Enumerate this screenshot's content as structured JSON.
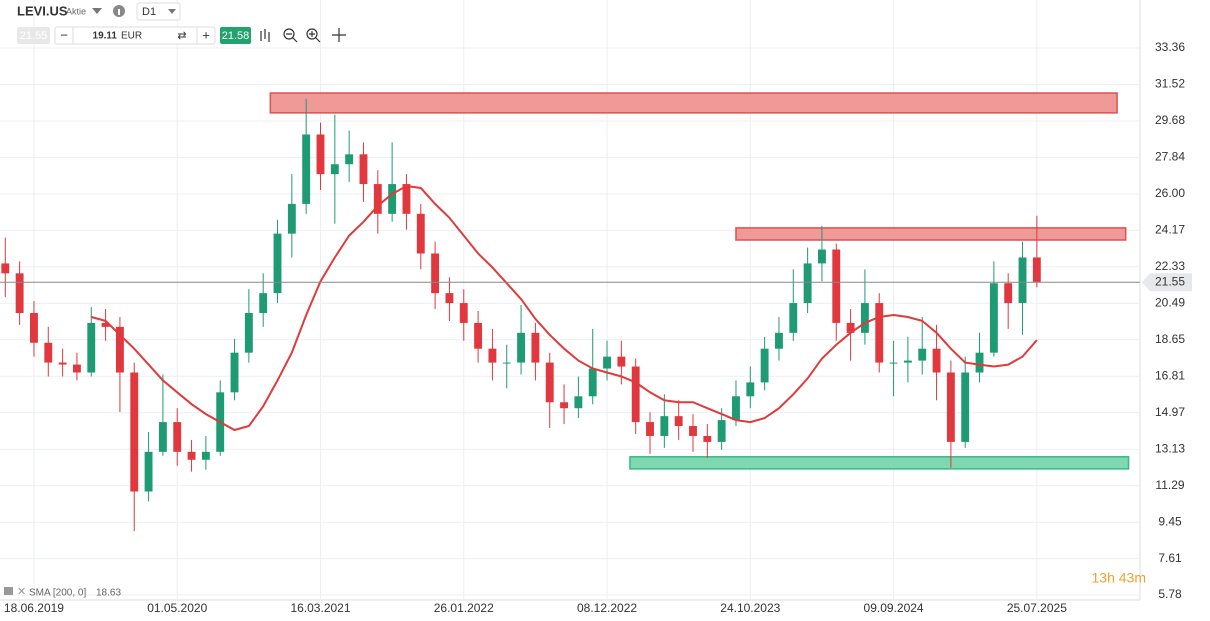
{
  "toolbar": {
    "symbol": "LEVI.US",
    "asset_type": "Aktie",
    "timeframe": "D1",
    "bid": 21.55,
    "volume": 19.11,
    "currency": "EUR",
    "ask": 21.58
  },
  "countdown": "13h 43m",
  "chart_data": {
    "type": "candlestick",
    "up_color": "#1e9b72",
    "down_color": "#e0383e",
    "grid": true,
    "xlim": [
      -0.37,
      79.2
    ],
    "xticks": [
      {
        "value": 2,
        "label": "18.06.2019"
      },
      {
        "value": 12,
        "label": "01.05.2020"
      },
      {
        "value": 22,
        "label": "16.03.2021"
      },
      {
        "value": 32,
        "label": "26.01.2022"
      },
      {
        "value": 42,
        "label": "08.12.2022"
      },
      {
        "value": 52,
        "label": "24.10.2023"
      },
      {
        "value": 62,
        "label": "09.09.2024"
      },
      {
        "value": 72,
        "label": "25.07.2025"
      }
    ],
    "ylim": [
      5.53,
      35.78
    ],
    "yticks": [
      33.36,
      31.52,
      29.68,
      27.84,
      {
        "value": 26,
        "label": "26.00"
      },
      24.17,
      22.33,
      20.49,
      18.65,
      16.81,
      14.97,
      13.13,
      11.29,
      9.45,
      7.61,
      5.78
    ],
    "open": [
      22.5,
      22.0,
      20.0,
      18.5,
      17.5,
      17.4,
      17.0,
      19.5,
      19.3,
      17.0,
      11.0,
      13.0,
      14.5,
      13.0,
      12.6,
      13.0,
      16.0,
      18.0,
      20.0,
      21.0,
      24.0,
      25.5,
      29.0,
      27.0,
      27.5,
      28.0,
      26.5,
      25.0,
      26.5,
      25.0,
      23.0,
      21.0,
      20.5,
      19.5,
      18.2,
      17.5,
      17.5,
      19.0,
      17.5,
      15.5,
      15.2,
      15.8,
      17.2,
      17.8,
      17.3,
      14.5,
      13.8,
      14.8,
      14.3,
      13.8,
      13.5,
      14.6,
      15.8,
      16.5,
      18.2,
      19.0,
      20.5,
      22.5,
      23.2,
      19.5,
      19.0,
      20.5,
      17.5,
      17.5,
      17.6,
      18.2,
      17.0,
      13.5,
      17.0,
      18.0,
      21.5,
      20.5,
      22.8
    ],
    "high": [
      23.8,
      22.6,
      20.6,
      19.3,
      18.2,
      18.0,
      20.3,
      20.2,
      19.8,
      17.5,
      14.0,
      16.9,
      15.2,
      13.6,
      13.8,
      16.6,
      18.7,
      21.2,
      22.0,
      24.7,
      27.0,
      30.8,
      29.6,
      30.0,
      29.2,
      28.6,
      27.2,
      28.6,
      27.0,
      25.5,
      23.6,
      21.8,
      21.2,
      20.1,
      19.2,
      18.4,
      20.4,
      19.5,
      18.0,
      16.4,
      16.8,
      19.2,
      18.6,
      18.6,
      17.7,
      15.0,
      15.9,
      15.6,
      14.9,
      14.4,
      15.2,
      16.6,
      17.3,
      18.8,
      19.8,
      22.2,
      23.3,
      24.4,
      23.5,
      20.2,
      22.2,
      21.0,
      18.6,
      18.8,
      19.8,
      19.4,
      17.6,
      17.8,
      19.0,
      22.6,
      22.0,
      23.6,
      24.9
    ],
    "low": [
      20.8,
      19.4,
      17.8,
      16.8,
      16.8,
      16.6,
      16.8,
      18.6,
      15.0,
      9.0,
      10.5,
      12.8,
      12.3,
      12.0,
      12.1,
      12.8,
      15.6,
      17.5,
      19.3,
      20.5,
      22.8,
      25.0,
      26.2,
      24.5,
      26.6,
      25.6,
      24.0,
      24.6,
      24.2,
      22.2,
      20.2,
      19.6,
      18.6,
      17.5,
      16.6,
      16.2,
      16.9,
      16.6,
      14.2,
      14.4,
      14.7,
      15.4,
      16.6,
      16.4,
      13.9,
      12.9,
      13.2,
      13.6,
      13.0,
      12.7,
      13.1,
      14.3,
      15.2,
      16.1,
      17.6,
      18.6,
      20.0,
      21.6,
      18.6,
      17.6,
      18.4,
      17.0,
      15.8,
      16.5,
      16.9,
      15.6,
      12.2,
      13.2,
      16.5,
      17.8,
      19.2,
      18.9,
      21.3
    ],
    "close": [
      22.0,
      20.0,
      18.5,
      17.5,
      17.4,
      17.0,
      19.5,
      19.3,
      17.0,
      11.0,
      13.0,
      14.5,
      13.0,
      12.6,
      13.0,
      16.0,
      18.0,
      20.0,
      21.0,
      24.0,
      25.5,
      29.0,
      27.0,
      27.5,
      28.0,
      26.5,
      25.0,
      26.5,
      25.0,
      23.0,
      21.0,
      20.5,
      19.5,
      18.2,
      17.5,
      17.5,
      19.0,
      17.5,
      15.5,
      15.2,
      15.8,
      17.2,
      17.8,
      17.3,
      14.5,
      13.8,
      14.8,
      14.3,
      13.8,
      13.5,
      14.6,
      15.8,
      16.5,
      18.2,
      19.0,
      20.5,
      22.5,
      23.2,
      19.5,
      19.0,
      20.5,
      17.5,
      17.5,
      17.6,
      18.2,
      17.0,
      13.5,
      17.0,
      18.0,
      21.5,
      20.5,
      22.8,
      21.55
    ],
    "sma": {
      "label": "SMA [200, 0]",
      "color": "#e03a3a",
      "values": [
        null,
        null,
        null,
        null,
        null,
        null,
        19.8,
        19.6,
        18.9,
        18.2,
        17.4,
        16.6,
        16.0,
        15.4,
        14.9,
        14.5,
        14.1,
        14.3,
        15.3,
        16.6,
        18.0,
        19.9,
        21.6,
        22.8,
        23.9,
        24.6,
        25.4,
        26.0,
        26.4,
        26.3,
        25.5,
        24.8,
        23.9,
        23.0,
        22.3,
        21.5,
        20.7,
        19.7,
        18.9,
        18.2,
        17.6,
        17.2,
        17.0,
        16.8,
        16.5,
        16.0,
        15.6,
        15.5,
        15.5,
        15.2,
        14.9,
        14.6,
        14.5,
        14.7,
        15.2,
        15.9,
        16.7,
        17.7,
        18.4,
        19.0,
        19.5,
        19.8,
        19.9,
        19.8,
        19.6,
        19.0,
        18.2,
        17.5,
        17.4,
        17.3,
        17.4,
        17.8,
        18.63
      ]
    },
    "zones": [
      {
        "x": [
          18.5,
          77.6
        ],
        "y": [
          30.09,
          31.09
        ],
        "color": "#f09a98",
        "stroke": "#e05050"
      },
      {
        "x": [
          51,
          78.2
        ],
        "y": [
          23.68,
          24.29
        ],
        "color": "#f09a98",
        "stroke": "#e05050"
      },
      {
        "x": [
          43.6,
          78.4
        ],
        "y": [
          12.14,
          12.75
        ],
        "color": "#7fd8b2",
        "stroke": "#3cb884"
      }
    ]
  }
}
